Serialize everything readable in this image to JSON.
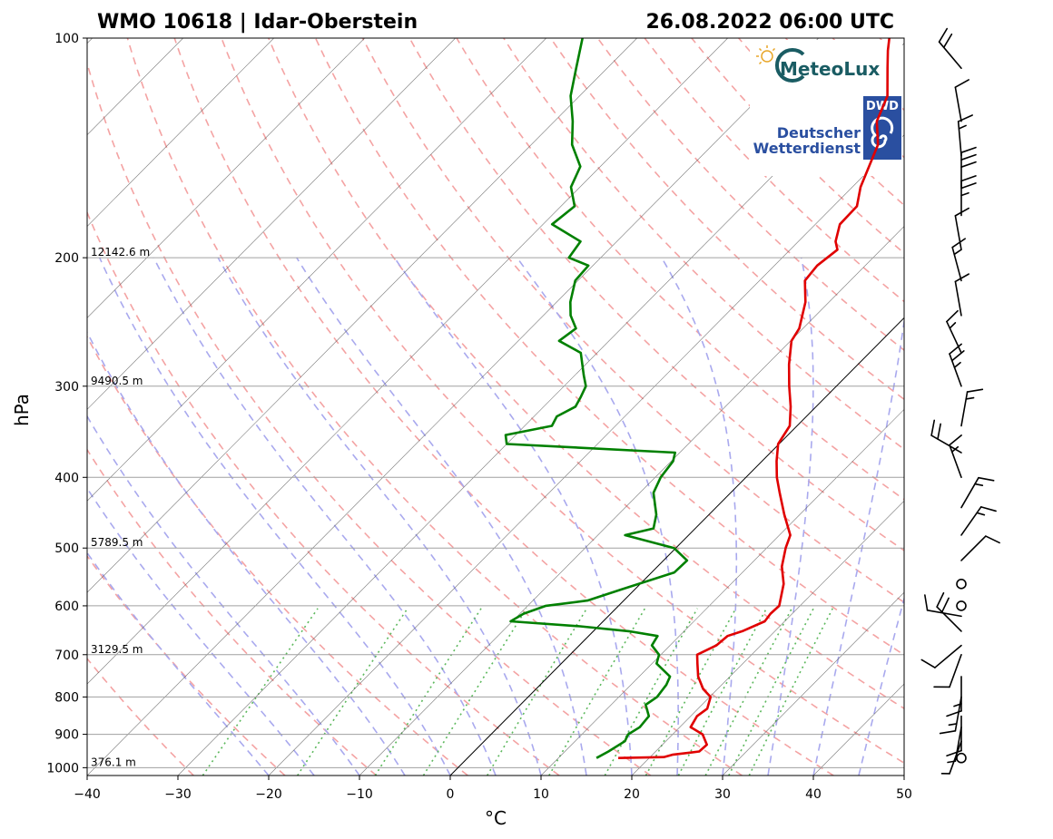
{
  "header": {
    "station": "WMO 10618 | Idar-Oberstein",
    "datetime": "26.08.2022 06:00 UTC"
  },
  "logos": {
    "meteolux": "MeteoLux",
    "dwd_badge": "DWD",
    "dwd_line1": "Deutscher",
    "dwd_line2": "Wetterdienst"
  },
  "colors": {
    "temperature": "#e00000",
    "dewpoint": "#008000",
    "dry_adiabat": "#f4a3a3",
    "moist_adiabat": "#a9a9ee",
    "mixing_ratio": "#5cb85c",
    "isotherm": "#555555"
  },
  "chart_data": {
    "type": "skew-t",
    "title": "WMO 10618 | Idar-Oberstein",
    "subtitle": "26.08.2022 06:00 UTC",
    "xlabel": "°C",
    "ylabel": "hPa",
    "xlim": [
      -40,
      50
    ],
    "ylim": [
      1025,
      100
    ],
    "x_ticks": [
      -40,
      -30,
      -20,
      -10,
      0,
      10,
      20,
      30,
      40,
      50
    ],
    "x_tick_labels": [
      "−40",
      "−30",
      "−20",
      "−10",
      "0",
      "10",
      "20",
      "30",
      "40",
      "50"
    ],
    "y_ticks": [
      100,
      200,
      300,
      400,
      500,
      600,
      700,
      800,
      900,
      1000
    ],
    "y_tick_labels": [
      "100",
      "200",
      "300",
      "400",
      "500",
      "600",
      "700",
      "800",
      "900",
      "1000"
    ],
    "heights": [
      {
        "p": 1000,
        "label": "376.1 m"
      },
      {
        "p": 700,
        "label": "3129.5 m"
      },
      {
        "p": 500,
        "label": "5789.5 m"
      },
      {
        "p": 300,
        "label": "9490.5 m"
      },
      {
        "p": 200,
        "label": "12142.6 m"
      }
    ],
    "series": [
      {
        "name": "Temperature",
        "points": [
          [
            970,
            16.6
          ],
          [
            967,
            21.5
          ],
          [
            960,
            22.2
          ],
          [
            950,
            24.8
          ],
          [
            930,
            24.9
          ],
          [
            900,
            23.3
          ],
          [
            880,
            21.2
          ],
          [
            850,
            20.7
          ],
          [
            830,
            21.0
          ],
          [
            800,
            20.1
          ],
          [
            780,
            18.4
          ],
          [
            750,
            16.5
          ],
          [
            720,
            15.0
          ],
          [
            700,
            14.0
          ],
          [
            680,
            15.1
          ],
          [
            660,
            15.3
          ],
          [
            650,
            16.4
          ],
          [
            630,
            17.8
          ],
          [
            615,
            17.6
          ],
          [
            600,
            17.7
          ],
          [
            560,
            15.8
          ],
          [
            530,
            13.7
          ],
          [
            500,
            12.1
          ],
          [
            480,
            11.2
          ],
          [
            450,
            8.3
          ],
          [
            420,
            5.4
          ],
          [
            400,
            3.4
          ],
          [
            380,
            1.6
          ],
          [
            360,
            -0.1
          ],
          [
            340,
            -0.8
          ],
          [
            320,
            -2.8
          ],
          [
            300,
            -5.2
          ],
          [
            280,
            -7.6
          ],
          [
            260,
            -9.9
          ],
          [
            250,
            -10.4
          ],
          [
            230,
            -12.6
          ],
          [
            215,
            -15.0
          ],
          [
            205,
            -15.3
          ],
          [
            195,
            -14.8
          ],
          [
            190,
            -15.9
          ],
          [
            180,
            -17.3
          ],
          [
            170,
            -17.4
          ],
          [
            160,
            -19.1
          ],
          [
            150,
            -20.4
          ],
          [
            140,
            -21.8
          ],
          [
            130,
            -24.5
          ],
          [
            120,
            -26.1
          ],
          [
            110,
            -29.1
          ],
          [
            104,
            -31.0
          ],
          [
            100,
            -32.2
          ]
        ]
      },
      {
        "name": "Dewpoint",
        "points": [
          [
            970,
            14.2
          ],
          [
            950,
            14.8
          ],
          [
            920,
            15.5
          ],
          [
            900,
            15.1
          ],
          [
            880,
            15.6
          ],
          [
            850,
            15.4
          ],
          [
            820,
            13.8
          ],
          [
            800,
            14.2
          ],
          [
            770,
            13.9
          ],
          [
            750,
            13.4
          ],
          [
            720,
            10.5
          ],
          [
            700,
            9.8
          ],
          [
            680,
            8.0
          ],
          [
            660,
            7.6
          ],
          [
            650,
            3.9
          ],
          [
            640,
            -2.0
          ],
          [
            630,
            -10.2
          ],
          [
            615,
            -9.6
          ],
          [
            600,
            -8.0
          ],
          [
            590,
            -4.0
          ],
          [
            570,
            -1.5
          ],
          [
            540,
            2.5
          ],
          [
            520,
            2.6
          ],
          [
            500,
            -0.2
          ],
          [
            480,
            -7.0
          ],
          [
            470,
            -4.6
          ],
          [
            450,
            -5.8
          ],
          [
            420,
            -8.5
          ],
          [
            400,
            -9.4
          ],
          [
            380,
            -9.8
          ],
          [
            370,
            -10.5
          ],
          [
            360,
            -30.0
          ],
          [
            350,
            -31.1
          ],
          [
            340,
            -27.0
          ],
          [
            330,
            -27.5
          ],
          [
            320,
            -26.5
          ],
          [
            310,
            -27.0
          ],
          [
            300,
            -27.6
          ],
          [
            290,
            -29.0
          ],
          [
            270,
            -31.8
          ],
          [
            260,
            -35.5
          ],
          [
            250,
            -35.0
          ],
          [
            240,
            -37.0
          ],
          [
            230,
            -38.5
          ],
          [
            215,
            -40.3
          ],
          [
            205,
            -40.5
          ],
          [
            200,
            -43.5
          ],
          [
            190,
            -44.0
          ],
          [
            180,
            -49.0
          ],
          [
            170,
            -48.5
          ],
          [
            160,
            -51.0
          ],
          [
            150,
            -52.2
          ],
          [
            140,
            -55.5
          ],
          [
            130,
            -58.0
          ],
          [
            120,
            -61.0
          ],
          [
            110,
            -63.4
          ],
          [
            100,
            -66.0
          ]
        ]
      }
    ],
    "wind_barbs": [
      {
        "p": 970,
        "dir": 0,
        "speed": 0
      },
      {
        "p": 920,
        "dir": 200,
        "speed": 5
      },
      {
        "p": 880,
        "dir": 190,
        "speed": 5
      },
      {
        "p": 850,
        "dir": 180,
        "speed": 10
      },
      {
        "p": 800,
        "dir": 190,
        "speed": 15
      },
      {
        "p": 750,
        "dir": 180,
        "speed": 15
      },
      {
        "p": 700,
        "dir": 200,
        "speed": 10
      },
      {
        "p": 680,
        "dir": 230,
        "speed": 10
      },
      {
        "p": 650,
        "dir": 315,
        "speed": 20
      },
      {
        "p": 620,
        "dir": 280,
        "speed": 10
      },
      {
        "p": 600,
        "dir": 0,
        "speed": 0
      },
      {
        "p": 560,
        "dir": 0,
        "speed": 0
      },
      {
        "p": 520,
        "dir": 45,
        "speed": 10
      },
      {
        "p": 480,
        "dir": 35,
        "speed": 15
      },
      {
        "p": 440,
        "dir": 30,
        "speed": 15
      },
      {
        "p": 400,
        "dir": 340,
        "speed": 15
      },
      {
        "p": 370,
        "dir": 300,
        "speed": 20
      },
      {
        "p": 340,
        "dir": 10,
        "speed": 15
      },
      {
        "p": 300,
        "dir": 340,
        "speed": 25
      },
      {
        "p": 270,
        "dir": 335,
        "speed": 15
      },
      {
        "p": 240,
        "dir": 350,
        "speed": 10
      },
      {
        "p": 215,
        "dir": 345,
        "speed": 15
      },
      {
        "p": 195,
        "dir": 350,
        "speed": 10
      },
      {
        "p": 175,
        "dir": 0,
        "speed": 25
      },
      {
        "p": 160,
        "dir": 0,
        "speed": 30
      },
      {
        "p": 145,
        "dir": 355,
        "speed": 15
      },
      {
        "p": 130,
        "dir": 350,
        "speed": 10
      },
      {
        "p": 110,
        "dir": 320,
        "speed": 20
      }
    ]
  }
}
